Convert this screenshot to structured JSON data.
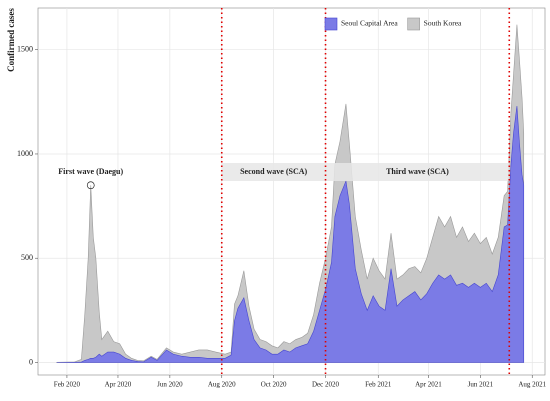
{
  "chart_data": {
    "type": "area",
    "y_label": "Confirmed cases",
    "x": [
      "2020-01-20",
      "2020-02-10",
      "2020-02-18",
      "2020-02-22",
      "2020-02-26",
      "2020-02-29",
      "2020-03-03",
      "2020-03-06",
      "2020-03-10",
      "2020-03-13",
      "2020-03-20",
      "2020-03-27",
      "2020-04-03",
      "2020-04-10",
      "2020-04-17",
      "2020-04-24",
      "2020-05-01",
      "2020-05-10",
      "2020-05-17",
      "2020-05-28",
      "2020-06-05",
      "2020-06-15",
      "2020-06-25",
      "2020-07-05",
      "2020-07-15",
      "2020-07-25",
      "2020-08-05",
      "2020-08-12",
      "2020-08-16",
      "2020-08-20",
      "2020-08-27",
      "2020-09-02",
      "2020-09-08",
      "2020-09-15",
      "2020-09-22",
      "2020-09-29",
      "2020-10-06",
      "2020-10-13",
      "2020-10-20",
      "2020-10-27",
      "2020-11-03",
      "2020-11-10",
      "2020-11-17",
      "2020-11-24",
      "2020-12-01",
      "2020-12-08",
      "2020-12-12",
      "2020-12-18",
      "2020-12-25",
      "2020-12-29",
      "2021-01-05",
      "2021-01-12",
      "2021-01-19",
      "2021-01-26",
      "2021-02-02",
      "2021-02-09",
      "2021-02-16",
      "2021-02-23",
      "2021-03-02",
      "2021-03-09",
      "2021-03-16",
      "2021-03-23",
      "2021-03-30",
      "2021-04-06",
      "2021-04-13",
      "2021-04-20",
      "2021-04-27",
      "2021-05-04",
      "2021-05-11",
      "2021-05-18",
      "2021-05-25",
      "2021-06-01",
      "2021-06-08",
      "2021-06-15",
      "2021-06-22",
      "2021-06-29",
      "2021-07-03",
      "2021-07-07",
      "2021-07-10",
      "2021-07-14",
      "2021-07-17",
      "2021-07-20",
      "2021-07-22"
    ],
    "series": [
      {
        "name": "South Korea",
        "color": "#c8c8c8",
        "line_color": "#999999",
        "values": [
          1,
          3,
          15,
          230,
          500,
          850,
          600,
          500,
          240,
          110,
          150,
          100,
          90,
          40,
          20,
          10,
          8,
          30,
          15,
          70,
          50,
          40,
          50,
          60,
          60,
          50,
          40,
          50,
          280,
          320,
          440,
          270,
          160,
          110,
          100,
          80,
          70,
          100,
          90,
          110,
          120,
          140,
          230,
          380,
          500,
          650,
          950,
          1060,
          1240,
          1050,
          700,
          540,
          400,
          500,
          440,
          400,
          620,
          400,
          420,
          450,
          460,
          430,
          500,
          600,
          700,
          650,
          700,
          600,
          650,
          580,
          620,
          570,
          600,
          520,
          600,
          800,
          820,
          1200,
          1380,
          1620,
          1450,
          1270,
          1100
        ]
      },
      {
        "name": "Seoul Capital Area",
        "color": "#7b7be6",
        "line_color": "#4545d0",
        "values": [
          0,
          1,
          2,
          10,
          15,
          20,
          20,
          25,
          40,
          30,
          50,
          50,
          40,
          20,
          10,
          5,
          3,
          25,
          10,
          60,
          40,
          30,
          25,
          25,
          20,
          20,
          20,
          35,
          200,
          260,
          310,
          200,
          110,
          70,
          60,
          40,
          40,
          60,
          50,
          70,
          80,
          90,
          150,
          250,
          350,
          480,
          700,
          800,
          870,
          760,
          450,
          330,
          250,
          320,
          270,
          250,
          450,
          270,
          300,
          320,
          340,
          300,
          330,
          380,
          420,
          400,
          420,
          370,
          380,
          360,
          380,
          360,
          380,
          340,
          420,
          650,
          660,
          950,
          1100,
          1230,
          1050,
          900,
          850
        ]
      }
    ],
    "legend_order": [
      1,
      0
    ],
    "xlim": [
      "2019-12-29",
      "2021-08-16"
    ],
    "xticks": [
      {
        "value": "2020-02-01",
        "label": "Feb 2020"
      },
      {
        "value": "2020-04-01",
        "label": "Apr 2020"
      },
      {
        "value": "2020-06-01",
        "label": "Jun 2020"
      },
      {
        "value": "2020-08-01",
        "label": "Aug 2020"
      },
      {
        "value": "2020-10-01",
        "label": "Oct 2020"
      },
      {
        "value": "2020-12-01",
        "label": "Dec 2020"
      },
      {
        "value": "2021-02-01",
        "label": "Feb 2021"
      },
      {
        "value": "2021-04-01",
        "label": "Apr 2021"
      },
      {
        "value": "2021-06-01",
        "label": "Jun 2021"
      },
      {
        "value": "2021-08-01",
        "label": "Aug 2021"
      }
    ],
    "ylim": [
      -60,
      1700
    ],
    "yticks": [
      0,
      500,
      1000,
      1500
    ],
    "grid": true,
    "vlines": [
      "2020-08-01",
      "2020-12-01",
      "2021-07-05"
    ],
    "vline_color": "#e00000",
    "peak_marker": {
      "x": "2020-02-29",
      "value": 850
    },
    "annotations": [
      "First wave (Daegu)",
      "Second wave (SCA)",
      "Third wave (SCA)"
    ]
  }
}
